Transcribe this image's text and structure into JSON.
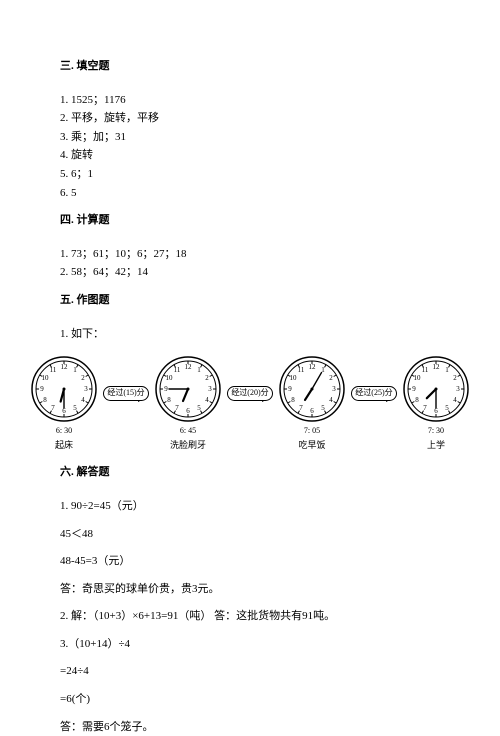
{
  "sections": {
    "s3": {
      "title": "三. 填空题",
      "items": [
        "1. 1525；1176",
        "2. 平移，旋转，平移",
        "3. 乘；加；31",
        "4. 旋转",
        "5. 6；1",
        "6. 5"
      ]
    },
    "s4": {
      "title": "四. 计算题",
      "items": [
        "1. 73；61；10；6；27；18",
        "2. 58；64；42；14"
      ]
    },
    "s5": {
      "title": "五. 作图题",
      "intro": "1. 如下："
    },
    "s6": {
      "title": "六. 解答题",
      "lines": [
        "1. 90÷2=45（元）",
        "45＜48",
        "48-45=3（元）",
        "答：奇思买的球单价贵，贵3元。",
        "2. 解：（10+3）×6+13=91（吨）  答：这批货物共有91吨。",
        "3.（10+14）÷4",
        "=24÷4",
        "=6(个)",
        "答：需要6个笼子。"
      ]
    }
  },
  "clocks": [
    {
      "time": "6: 30",
      "caption": "起床",
      "hourAngle": 195,
      "minAngle": 180
    },
    {
      "time": "6: 45",
      "caption": "洗脸刷牙",
      "hourAngle": 202.5,
      "minAngle": 270
    },
    {
      "time": "7: 05",
      "caption": "吃早饭",
      "hourAngle": 212.5,
      "minAngle": 30
    },
    {
      "time": "7: 30",
      "caption": "上学",
      "hourAngle": 225,
      "minAngle": 180
    }
  ],
  "arrows": [
    "经过(15)分",
    "经过(20)分",
    "经过(25)分"
  ],
  "clockStyle": {
    "outerR": 32,
    "faceR": 28,
    "numR": 22,
    "tickOuter": 28,
    "tickInner": 25,
    "hourLen": 13,
    "minLen": 19
  }
}
